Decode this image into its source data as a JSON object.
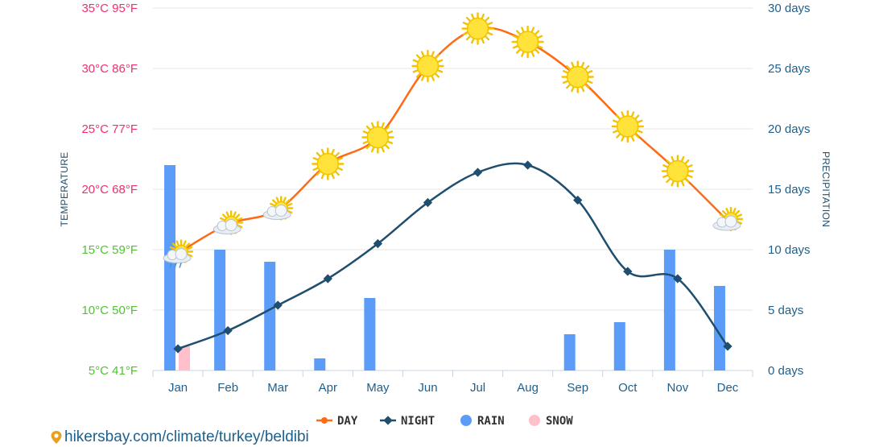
{
  "chart_data": {
    "type": "line",
    "categories": [
      "Jan",
      "Feb",
      "Mar",
      "Apr",
      "May",
      "Jun",
      "Jul",
      "Aug",
      "Sep",
      "Oct",
      "Nov",
      "Dec"
    ],
    "series": [
      {
        "name": "DAY",
        "type": "line",
        "unit": "°C",
        "color": "#ff6a13",
        "values": [
          14.7,
          17.1,
          18.3,
          22.1,
          24.3,
          30.2,
          33.3,
          32.2,
          29.3,
          25.2,
          21.5,
          17.4
        ]
      },
      {
        "name": "NIGHT",
        "type": "line",
        "unit": "°C",
        "color": "#1f4e6e",
        "values": [
          6.8,
          8.3,
          10.4,
          12.6,
          15.5,
          18.9,
          21.4,
          22.0,
          19.1,
          13.2,
          12.6,
          7.0
        ]
      },
      {
        "name": "RAIN",
        "type": "bar",
        "unit": "days",
        "color": "#5a9cf8",
        "values": [
          17,
          10,
          9,
          1,
          6,
          0,
          0,
          0,
          3,
          4,
          10,
          7
        ]
      },
      {
        "name": "SNOW",
        "type": "bar",
        "unit": "days",
        "color": "#ffc0cb",
        "values": [
          2,
          0,
          0,
          0,
          0,
          0,
          0,
          0,
          0,
          0,
          0,
          0
        ]
      }
    ],
    "day_weather_icons": [
      "partly-cloudy-rain-icon",
      "partly-cloudy-icon",
      "partly-cloudy-icon",
      "sun-icon",
      "sun-icon",
      "sun-icon",
      "sun-icon",
      "sun-icon",
      "sun-icon",
      "sun-icon",
      "sun-icon",
      "partly-cloudy-icon"
    ],
    "y_left": {
      "title": "TEMPERATURE",
      "range": [
        5,
        35
      ],
      "ticks": [
        {
          "value": 35,
          "label": "35°C 95°F",
          "color": "#f0306a"
        },
        {
          "value": 30,
          "label": "30°C 86°F",
          "color": "#f0306a"
        },
        {
          "value": 25,
          "label": "25°C 77°F",
          "color": "#f0306a"
        },
        {
          "value": 20,
          "label": "20°C 68°F",
          "color": "#f0306a"
        },
        {
          "value": 15,
          "label": "15°C 59°F",
          "color": "#52c234"
        },
        {
          "value": 10,
          "label": "10°C 50°F",
          "color": "#52c234"
        },
        {
          "value": 5,
          "label": "5°C 41°F",
          "color": "#52c234"
        }
      ]
    },
    "y_right": {
      "title": "PRECIPITATION",
      "range": [
        0,
        30
      ],
      "ticks": [
        {
          "value": 30,
          "label": "30 days"
        },
        {
          "value": 25,
          "label": "25 days"
        },
        {
          "value": 20,
          "label": "20 days"
        },
        {
          "value": 15,
          "label": "15 days"
        },
        {
          "value": 10,
          "label": "10 days"
        },
        {
          "value": 5,
          "label": "5 days"
        },
        {
          "value": 0,
          "label": "0 days"
        }
      ]
    },
    "legend": {
      "placement": "bottom-center",
      "items": [
        {
          "label": "DAY",
          "color": "#ff6a13",
          "marker": "line-dot"
        },
        {
          "label": "NIGHT",
          "color": "#1f4e6e",
          "marker": "line-diamond"
        },
        {
          "label": "RAIN",
          "color": "#5a9cf8",
          "marker": "circle"
        },
        {
          "label": "SNOW",
          "color": "#ffc0cb",
          "marker": "circle"
        }
      ]
    },
    "grid": true
  },
  "source": {
    "text": "hikersbay.com/climate/turkey/beldibi",
    "icon": "location-pin-icon",
    "color": "#e8a020"
  }
}
